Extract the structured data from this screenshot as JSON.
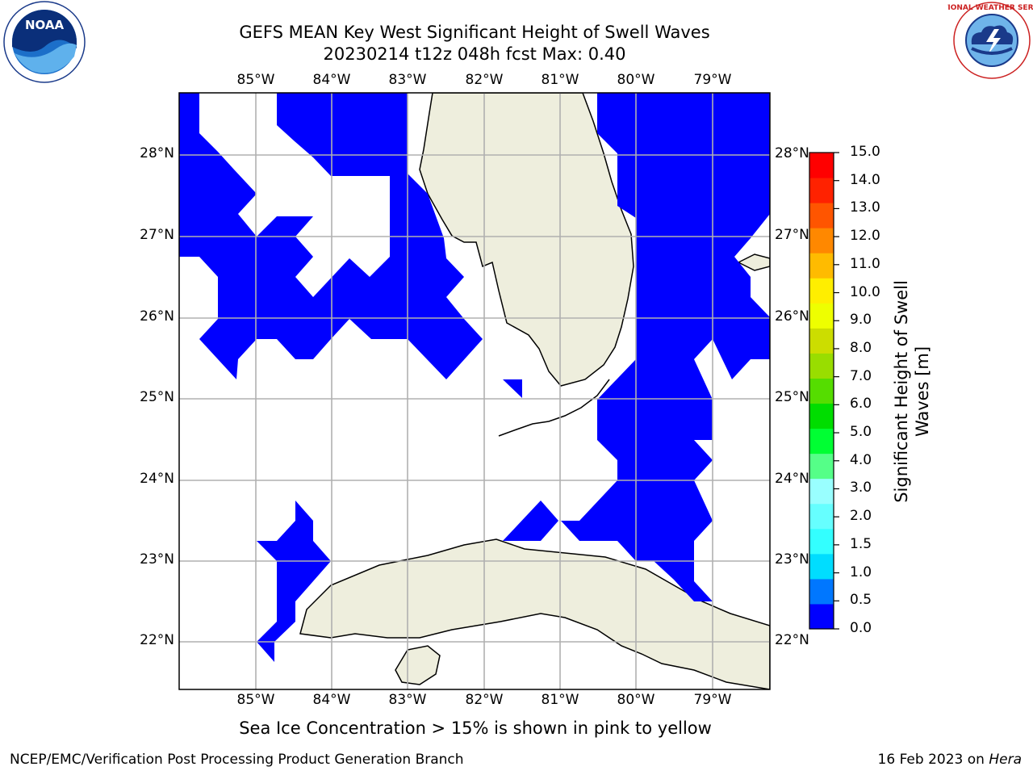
{
  "title": {
    "line1": "GEFS MEAN Key West Significant Height of Swell Waves",
    "line2": "20230214 t12z 048h fcst   Max: 0.40"
  },
  "map": {
    "longitude_labels": [
      "85°W",
      "84°W",
      "83°W",
      "82°W",
      "81°W",
      "80°W",
      "79°W"
    ],
    "latitude_labels": [
      "28°N",
      "27°N",
      "26°N",
      "25°N",
      "24°N",
      "23°N",
      "22°N"
    ],
    "land_color": "#eeeedd",
    "swell_fill_color": "#0000ff",
    "grid_color": "#b0b0b0"
  },
  "colorbar": {
    "label_line1": "Significant Height of Swell",
    "label_line2": "Waves [m]",
    "ticks": [
      "0.0",
      "0.5",
      "1.0",
      "1.5",
      "2.0",
      "3.0",
      "4.0",
      "5.0",
      "6.0",
      "7.0",
      "8.0",
      "9.0",
      "10.0",
      "11.0",
      "12.0",
      "13.0",
      "14.0",
      "15.0"
    ],
    "colors": [
      "#0000ff",
      "#0077ff",
      "#00ddff",
      "#33ffff",
      "#66ffff",
      "#99ffff",
      "#55ff88",
      "#00ff33",
      "#00dd00",
      "#55dd00",
      "#99dd00",
      "#ccdd00",
      "#eeff00",
      "#ffee00",
      "#ffbb00",
      "#ff8800",
      "#ff5500",
      "#ff2200",
      "#ff0000"
    ]
  },
  "logos": {
    "noaa_text": "NOAA",
    "noaa_ring_text": "NATIONAL OCEANIC AND ATMOSPHERIC ADMINISTRATION · U.S. DEPARTMENT OF COMMERCE",
    "nws_ring_text": "NATIONAL WEATHER SERVICE"
  },
  "sea_ice_note": "Sea Ice Concentration > 15% is shown in pink to yellow",
  "footer": {
    "left": "NCEP/EMC/Verification Post Processing Product Generation Branch",
    "right_prefix": "16 Feb 2023 on ",
    "right_host": "Hera"
  }
}
